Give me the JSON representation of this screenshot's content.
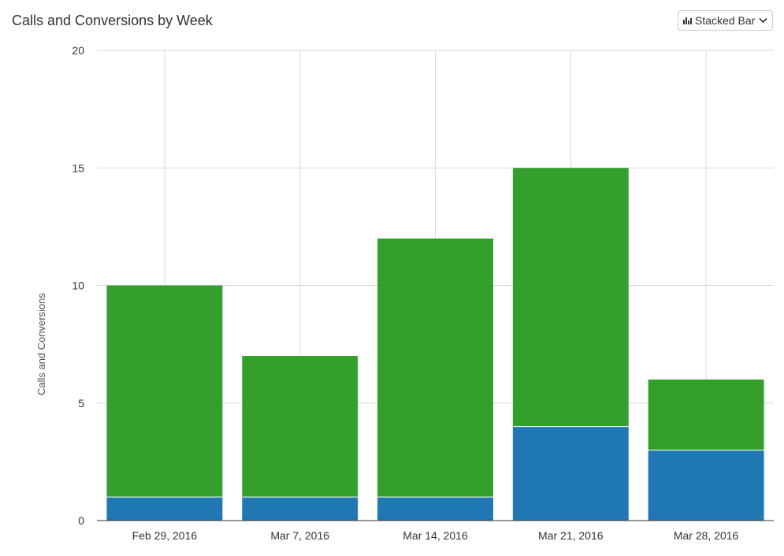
{
  "header": {
    "title": "Calls and Conversions by Week",
    "chart_type_label": "Stacked Bar",
    "chart_type_icon": "bar-chart-icon"
  },
  "colors": {
    "calls": "#33a02c",
    "conversions": "#1f78b4",
    "grid": "#d9d9d9",
    "axis": "#333333"
  },
  "chart_data": {
    "type": "bar",
    "stacked": true,
    "title": "Calls and Conversions by Week",
    "xlabel": "",
    "ylabel": "Calls and Conversions",
    "categories": [
      "Feb 29, 2016",
      "Mar 7, 2016",
      "Mar 14, 2016",
      "Mar 21, 2016",
      "Mar 28, 2016"
    ],
    "series": [
      {
        "values": [
          1,
          1,
          1,
          4,
          3
        ],
        "color": "#1f78b4"
      },
      {
        "values": [
          9,
          6,
          11,
          11,
          3
        ],
        "color": "#33a02c"
      }
    ],
    "ylim": [
      0,
      20
    ],
    "yticks": [
      0,
      5,
      10,
      15,
      20
    ],
    "grid": true,
    "legend": "none"
  }
}
